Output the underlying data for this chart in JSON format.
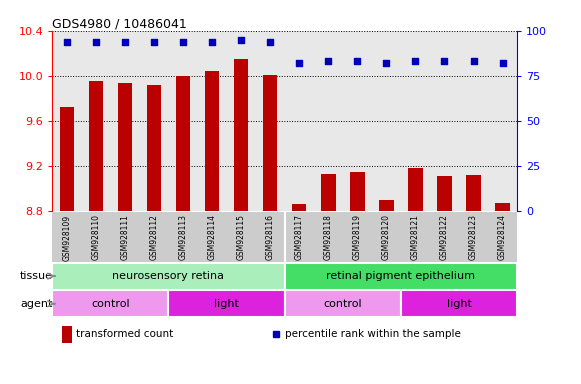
{
  "title": "GDS4980 / 10486041",
  "samples": [
    "GSM928109",
    "GSM928110",
    "GSM928111",
    "GSM928112",
    "GSM928113",
    "GSM928114",
    "GSM928115",
    "GSM928116",
    "GSM928117",
    "GSM928118",
    "GSM928119",
    "GSM928120",
    "GSM928121",
    "GSM928122",
    "GSM928123",
    "GSM928124"
  ],
  "transformed_count": [
    9.72,
    9.95,
    9.94,
    9.92,
    10.0,
    10.04,
    10.15,
    10.01,
    8.86,
    9.13,
    9.15,
    8.9,
    9.18,
    9.11,
    9.12,
    8.87
  ],
  "percentile_rank": [
    94,
    94,
    94,
    94,
    94,
    94,
    95,
    94,
    82,
    83,
    83,
    82,
    83,
    83,
    83,
    82
  ],
  "ylim_left": [
    8.8,
    10.4
  ],
  "ylim_right": [
    0,
    100
  ],
  "yticks_left": [
    8.8,
    9.2,
    9.6,
    10.0,
    10.4
  ],
  "yticks_right": [
    0,
    25,
    50,
    75,
    100
  ],
  "bar_color": "#bb0000",
  "dot_color": "#0000bb",
  "tissue_labels": [
    "neurosensory retina",
    "retinal pigment epithelium"
  ],
  "tissue_ranges": [
    [
      0,
      7
    ],
    [
      8,
      15
    ]
  ],
  "tissue_color_left": "#aaeebb",
  "tissue_color_right": "#44dd66",
  "agent_labels": [
    "control",
    "light",
    "control",
    "light"
  ],
  "agent_ranges": [
    [
      0,
      3
    ],
    [
      4,
      7
    ],
    [
      8,
      11
    ],
    [
      12,
      15
    ]
  ],
  "agent_color_control": "#ee99ee",
  "agent_color_light": "#dd22dd",
  "legend_items": [
    "transformed count",
    "percentile rank within the sample"
  ],
  "legend_colors": [
    "#bb0000",
    "#0000bb"
  ],
  "bg_color": "#ffffff",
  "plot_bg_color": "#e8e8e8",
  "label_area_color": "#cccccc"
}
